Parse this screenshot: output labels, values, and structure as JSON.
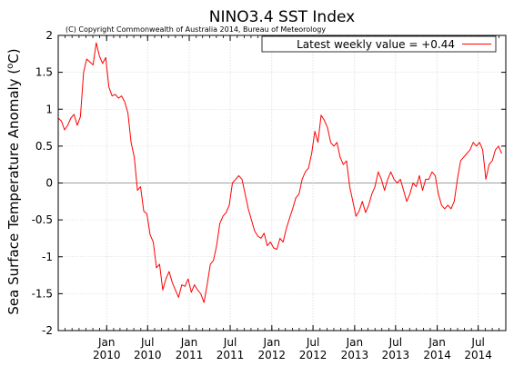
{
  "chart_data": {
    "type": "line",
    "title": "NINO3.4 SST Index",
    "subtitle": "(C) Copyright Commonwealth of Australia 2014, Bureau of Meteorology",
    "ylabel_main": "Sea Surface Temperature Anomaly (",
    "ylabel_sup": "o",
    "ylabel_unit": "C)",
    "ylim": [
      -2,
      2
    ],
    "yticks": [
      {
        "v": -2,
        "label": "-2"
      },
      {
        "v": -1.5,
        "label": "-1.5"
      },
      {
        "v": -1,
        "label": "-1"
      },
      {
        "v": -0.5,
        "label": "-0.5"
      },
      {
        "v": 0,
        "label": "0"
      },
      {
        "v": 0.5,
        "label": "0.5"
      },
      {
        "v": 1,
        "label": "1"
      },
      {
        "v": 1.5,
        "label": "1.5"
      },
      {
        "v": 2,
        "label": "2"
      }
    ],
    "xlim": [
      "2009-06-01",
      "2014-10-31"
    ],
    "xticks": [
      {
        "date": "2010-01-01",
        "month": "Jan",
        "year": "2010"
      },
      {
        "date": "2010-07-01",
        "month": "Jul",
        "year": "2010"
      },
      {
        "date": "2011-01-01",
        "month": "Jan",
        "year": "2011"
      },
      {
        "date": "2011-07-01",
        "month": "Jul",
        "year": "2011"
      },
      {
        "date": "2012-01-01",
        "month": "Jan",
        "year": "2012"
      },
      {
        "date": "2012-07-01",
        "month": "Jul",
        "year": "2012"
      },
      {
        "date": "2013-01-01",
        "month": "Jan",
        "year": "2013"
      },
      {
        "date": "2013-07-01",
        "month": "Jul",
        "year": "2013"
      },
      {
        "date": "2014-01-01",
        "month": "Jan",
        "year": "2014"
      },
      {
        "date": "2014-07-01",
        "month": "Jul",
        "year": "2014"
      }
    ],
    "grid": true,
    "legend_position": "top-right",
    "series": [
      {
        "name": "Latest weekly value = +0.44",
        "color": "#ff0000",
        "x": [
          "2009-06-01",
          "2009-06-15",
          "2009-06-29",
          "2009-07-13",
          "2009-07-27",
          "2009-08-10",
          "2009-08-24",
          "2009-09-07",
          "2009-09-21",
          "2009-10-05",
          "2009-10-19",
          "2009-11-02",
          "2009-11-16",
          "2009-11-30",
          "2009-12-14",
          "2009-12-28",
          "2010-01-11",
          "2010-01-25",
          "2010-02-08",
          "2010-02-22",
          "2010-03-08",
          "2010-03-22",
          "2010-04-05",
          "2010-04-19",
          "2010-05-03",
          "2010-05-17",
          "2010-05-31",
          "2010-06-14",
          "2010-06-28",
          "2010-07-12",
          "2010-07-26",
          "2010-08-09",
          "2010-08-23",
          "2010-09-06",
          "2010-09-20",
          "2010-10-04",
          "2010-10-18",
          "2010-11-01",
          "2010-11-15",
          "2010-11-29",
          "2010-12-13",
          "2010-12-27",
          "2011-01-10",
          "2011-01-24",
          "2011-02-07",
          "2011-02-21",
          "2011-03-07",
          "2011-03-21",
          "2011-04-04",
          "2011-04-18",
          "2011-05-02",
          "2011-05-16",
          "2011-05-30",
          "2011-06-13",
          "2011-06-27",
          "2011-07-11",
          "2011-07-25",
          "2011-08-08",
          "2011-08-22",
          "2011-09-05",
          "2011-09-19",
          "2011-10-03",
          "2011-10-17",
          "2011-10-31",
          "2011-11-14",
          "2011-11-28",
          "2011-12-12",
          "2011-12-26",
          "2012-01-09",
          "2012-01-23",
          "2012-02-06",
          "2012-02-20",
          "2012-03-05",
          "2012-03-19",
          "2012-04-02",
          "2012-04-16",
          "2012-04-30",
          "2012-05-14",
          "2012-05-28",
          "2012-06-11",
          "2012-06-25",
          "2012-07-09",
          "2012-07-23",
          "2012-08-06",
          "2012-08-20",
          "2012-09-03",
          "2012-09-17",
          "2012-10-01",
          "2012-10-15",
          "2012-10-29",
          "2012-11-12",
          "2012-11-26",
          "2012-12-10",
          "2012-12-24",
          "2013-01-07",
          "2013-01-21",
          "2013-02-04",
          "2013-02-18",
          "2013-03-04",
          "2013-03-18",
          "2013-04-01",
          "2013-04-15",
          "2013-04-29",
          "2013-05-13",
          "2013-05-27",
          "2013-06-10",
          "2013-06-24",
          "2013-07-08",
          "2013-07-22",
          "2013-08-05",
          "2013-08-19",
          "2013-09-02",
          "2013-09-16",
          "2013-09-30",
          "2013-10-14",
          "2013-10-28",
          "2013-11-11",
          "2013-11-25",
          "2013-12-09",
          "2013-12-23",
          "2014-01-06",
          "2014-01-20",
          "2014-02-03",
          "2014-02-17",
          "2014-03-03",
          "2014-03-17",
          "2014-03-31",
          "2014-04-14",
          "2014-04-28",
          "2014-05-12",
          "2014-05-26",
          "2014-06-09",
          "2014-06-23",
          "2014-07-07",
          "2014-07-21",
          "2014-08-04",
          "2014-08-18",
          "2014-09-01",
          "2014-09-15",
          "2014-09-29",
          "2014-10-13"
        ],
        "y": [
          0.88,
          0.84,
          0.72,
          0.78,
          0.88,
          0.93,
          0.78,
          0.9,
          1.5,
          1.68,
          1.64,
          1.6,
          1.9,
          1.72,
          1.62,
          1.7,
          1.3,
          1.18,
          1.2,
          1.15,
          1.18,
          1.1,
          0.95,
          0.55,
          0.35,
          -0.1,
          -0.05,
          -0.38,
          -0.42,
          -0.7,
          -0.8,
          -1.15,
          -1.1,
          -1.45,
          -1.3,
          -1.2,
          -1.35,
          -1.45,
          -1.55,
          -1.38,
          -1.4,
          -1.3,
          -1.48,
          -1.38,
          -1.45,
          -1.5,
          -1.62,
          -1.38,
          -1.1,
          -1.05,
          -0.85,
          -0.55,
          -0.45,
          -0.4,
          -0.3,
          0.0,
          0.05,
          0.1,
          0.05,
          -0.15,
          -0.35,
          -0.5,
          -0.65,
          -0.72,
          -0.75,
          -0.68,
          -0.85,
          -0.8,
          -0.88,
          -0.9,
          -0.75,
          -0.8,
          -0.62,
          -0.48,
          -0.35,
          -0.2,
          -0.15,
          0.05,
          0.15,
          0.2,
          0.4,
          0.7,
          0.55,
          0.92,
          0.85,
          0.75,
          0.55,
          0.5,
          0.55,
          0.35,
          0.25,
          0.3,
          -0.05,
          -0.25,
          -0.45,
          -0.38,
          -0.25,
          -0.4,
          -0.3,
          -0.15,
          -0.05,
          0.15,
          0.05,
          -0.1,
          0.05,
          0.15,
          0.05,
          0.0,
          0.05,
          -0.1,
          -0.25,
          -0.15,
          0.0,
          -0.05,
          0.1,
          -0.1,
          0.05,
          0.05,
          0.15,
          0.1,
          -0.15,
          -0.3,
          -0.35,
          -0.3,
          -0.35,
          -0.25,
          0.05,
          0.3,
          0.35,
          0.4,
          0.45,
          0.55,
          0.5,
          0.55,
          0.45,
          0.05,
          0.25,
          0.3,
          0.45,
          0.5,
          0.4
        ]
      }
    ]
  }
}
